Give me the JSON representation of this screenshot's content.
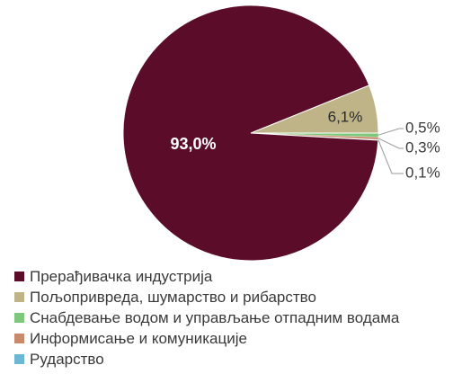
{
  "chart_data": {
    "type": "pie",
    "title": "",
    "series": [
      {
        "name": "Прерађивачка индустрија",
        "value": 93.0,
        "label": "93,0%",
        "color": "#5a0c29"
      },
      {
        "name": "Пољопривреда, шумарство и рибарство",
        "value": 6.1,
        "label": "6,1%",
        "color": "#bfb487"
      },
      {
        "name": "Снабдевање водом и управљање отпадним водама",
        "value": 0.5,
        "label": "0,5%",
        "color": "#7ec87e"
      },
      {
        "name": "Информисање и комуникације",
        "value": 0.3,
        "label": "0,3%",
        "color": "#c98a6c"
      },
      {
        "name": "Рударство",
        "value": 0.1,
        "label": "0,1%",
        "color": "#6cb8d4"
      }
    ],
    "legend_position": "bottom-left"
  }
}
